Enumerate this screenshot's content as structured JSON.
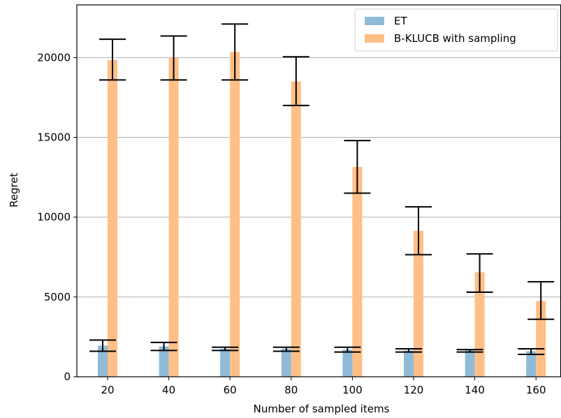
{
  "chart_data": {
    "type": "bar",
    "title": "",
    "xlabel": "Number of sampled items",
    "ylabel": "Regret",
    "categories": [
      "20",
      "40",
      "60",
      "80",
      "100",
      "120",
      "140",
      "160"
    ],
    "ylim": [
      0,
      23300
    ],
    "yticks": [
      0,
      5000,
      10000,
      15000,
      20000
    ],
    "grid": "horizontal",
    "legend_position": "top-right",
    "series": [
      {
        "name": "ET",
        "color": "#8fbbd9",
        "values": [
          1950,
          1900,
          1750,
          1750,
          1700,
          1650,
          1650,
          1600
        ],
        "error_low": [
          1600,
          1650,
          1650,
          1600,
          1550,
          1550,
          1550,
          1400
        ],
        "error_high": [
          2300,
          2150,
          1850,
          1850,
          1850,
          1750,
          1700,
          1750
        ]
      },
      {
        "name": "B-KLUCB with sampling",
        "color": "#ffbf86",
        "values": [
          19850,
          20000,
          20350,
          18500,
          13150,
          9150,
          6550,
          4750
        ],
        "error_low": [
          18600,
          18600,
          18600,
          17000,
          11500,
          7650,
          5300,
          3600
        ],
        "error_high": [
          21150,
          21350,
          22100,
          20050,
          14800,
          10650,
          7700,
          5950
        ]
      }
    ]
  }
}
